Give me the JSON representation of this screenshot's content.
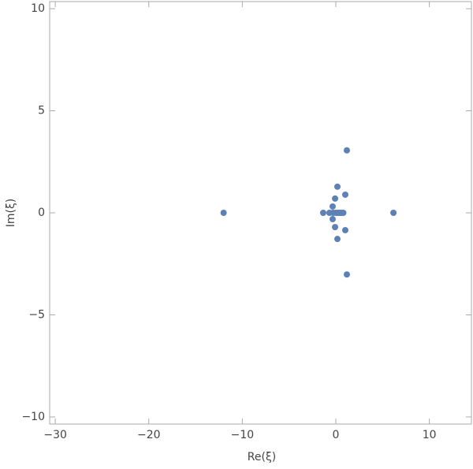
{
  "chart_data": {
    "type": "scatter",
    "x_label": "Re(ξ)",
    "y_label": "Im(ξ)",
    "xlim": [
      -30.6,
      14.5
    ],
    "ylim": [
      -10.35,
      10.35
    ],
    "xticks": [
      {
        "value": -30,
        "label": "−30"
      },
      {
        "value": -20,
        "label": "−20"
      },
      {
        "value": -10,
        "label": "−10"
      },
      0,
      10
    ],
    "yticks": [
      {
        "value": -10,
        "label": "−10"
      },
      {
        "value": -5,
        "label": "−5"
      },
      0,
      5,
      10
    ],
    "color": "#5e81b5",
    "x": [
      -12.0,
      6.16,
      1.18,
      1.18,
      0.17,
      0.17,
      1.01,
      1.01,
      -0.08,
      -0.08,
      -0.34,
      -0.34,
      -1.35,
      -0.68,
      -0.3,
      0,
      0.2,
      0.4,
      0.6,
      0.8
    ],
    "y": [
      0,
      0,
      3.06,
      -3.02,
      1.28,
      -1.28,
      0.89,
      -0.85,
      0.7,
      -0.7,
      0.31,
      -0.31,
      0,
      0,
      0,
      0,
      0,
      0,
      0,
      0
    ]
  }
}
